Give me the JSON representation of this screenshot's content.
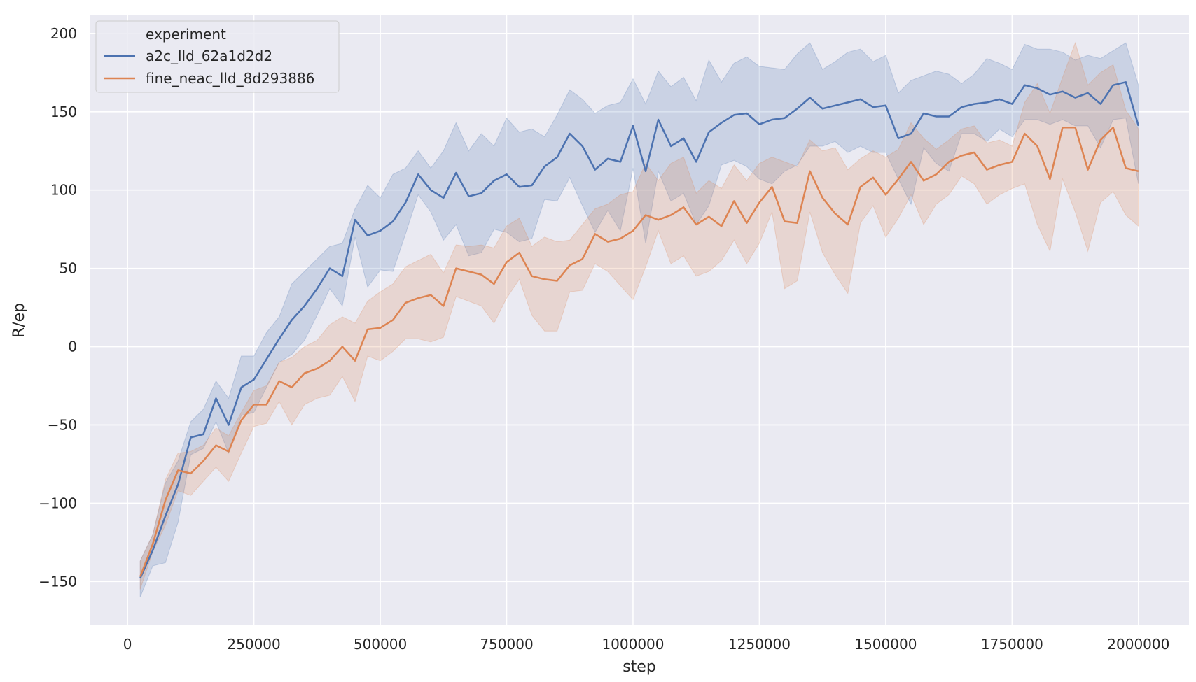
{
  "chart_data": {
    "type": "line",
    "title": "",
    "xlabel": "step",
    "ylabel": "R/ep",
    "xlim": [
      -75000,
      2100000
    ],
    "ylim": [
      -178,
      212
    ],
    "xticks": [
      0,
      250000,
      500000,
      750000,
      1000000,
      1250000,
      1500000,
      1750000,
      2000000
    ],
    "xtick_labels": [
      "0",
      "250000",
      "500000",
      "750000",
      "1000000",
      "1250000",
      "1500000",
      "1750000",
      "2000000"
    ],
    "yticks": [
      -150,
      -100,
      -50,
      0,
      50,
      100,
      150,
      200
    ],
    "ytick_labels": [
      "−150",
      "−100",
      "−50",
      "0",
      "50",
      "100",
      "150",
      "200"
    ],
    "grid": true,
    "legend": {
      "title": "experiment",
      "placement": "top-left"
    },
    "x": [
      25000,
      50000,
      75000,
      100000,
      125000,
      150000,
      175000,
      200000,
      225000,
      250000,
      275000,
      300000,
      325000,
      350000,
      375000,
      400000,
      425000,
      450000,
      475000,
      500000,
      525000,
      550000,
      575000,
      600000,
      625000,
      650000,
      675000,
      700000,
      725000,
      750000,
      775000,
      800000,
      825000,
      850000,
      875000,
      900000,
      925000,
      950000,
      975000,
      1000000,
      1025000,
      1050000,
      1075000,
      1100000,
      1125000,
      1150000,
      1175000,
      1200000,
      1225000,
      1250000,
      1275000,
      1300000,
      1325000,
      1350000,
      1375000,
      1400000,
      1425000,
      1450000,
      1475000,
      1500000,
      1525000,
      1550000,
      1575000,
      1600000,
      1625000,
      1650000,
      1675000,
      1700000,
      1725000,
      1750000,
      1775000,
      1800000,
      1825000,
      1850000,
      1875000,
      1900000,
      1925000,
      1950000,
      1975000,
      2000000
    ],
    "series": [
      {
        "name": "a2c_lld_62a1d2d2",
        "color": "#4c72b0",
        "values": [
          -148,
          -130,
          -108,
          -88,
          -58,
          -56,
          -33,
          -50,
          -26,
          -21,
          -8,
          5,
          17,
          26,
          37,
          50,
          45,
          81,
          71,
          74,
          80,
          92,
          110,
          100,
          95,
          111,
          96,
          98,
          106,
          110,
          102,
          103,
          115,
          121,
          136,
          128,
          113,
          120,
          118,
          141,
          112,
          145,
          128,
          133,
          118,
          137,
          143,
          148,
          149,
          142,
          145,
          146,
          152,
          159,
          152,
          154,
          156,
          158,
          153,
          154,
          133,
          136,
          149,
          147,
          147,
          153,
          155,
          156,
          158,
          155,
          167,
          165,
          161,
          163,
          159,
          162,
          155,
          167,
          169,
          141
        ],
        "upper": [
          -137,
          -120,
          -87,
          -73,
          -48,
          -40,
          -22,
          -33,
          -6,
          -6,
          9,
          19,
          40,
          48,
          56,
          64,
          66,
          88,
          103,
          95,
          110,
          114,
          125,
          114,
          125,
          143,
          125,
          136,
          128,
          146,
          137,
          139,
          134,
          148,
          164,
          158,
          149,
          154,
          156,
          171,
          155,
          176,
          166,
          172,
          157,
          183,
          169,
          181,
          185,
          179,
          178,
          177,
          187,
          194,
          177,
          182,
          188,
          190,
          182,
          186,
          162,
          170,
          173,
          176,
          174,
          168,
          174,
          184,
          181,
          177,
          193,
          190,
          190,
          188,
          183,
          186,
          184,
          189,
          194,
          167
        ],
        "lower": [
          -160,
          -140,
          -138,
          -112,
          -69,
          -65,
          -48,
          -68,
          -44,
          -42,
          -26,
          -10,
          -5,
          4,
          20,
          37,
          26,
          70,
          38,
          49,
          48,
          72,
          97,
          86,
          68,
          78,
          58,
          60,
          75,
          73,
          67,
          69,
          94,
          93,
          108,
          90,
          73,
          87,
          74,
          114,
          66,
          112,
          93,
          98,
          78,
          90,
          116,
          119,
          115,
          107,
          104,
          112,
          116,
          128,
          128,
          131,
          124,
          128,
          124,
          124,
          107,
          91,
          127,
          117,
          112,
          136,
          136,
          131,
          139,
          134,
          145,
          145,
          142,
          145,
          141,
          141,
          127,
          145,
          146,
          104
        ]
      },
      {
        "name": "fine_neac_lld_8d293886",
        "color": "#dd8452",
        "values": [
          -147,
          -126,
          -98,
          -79,
          -81,
          -73,
          -63,
          -67,
          -47,
          -37,
          -37,
          -22,
          -26,
          -17,
          -14,
          -9,
          0,
          -9,
          11,
          12,
          17,
          28,
          31,
          33,
          26,
          50,
          48,
          46,
          40,
          54,
          60,
          45,
          43,
          42,
          52,
          56,
          72,
          67,
          69,
          74,
          84,
          81,
          84,
          89,
          78,
          83,
          77,
          93,
          79,
          92,
          102,
          80,
          79,
          112,
          95,
          85,
          78,
          102,
          108,
          97,
          107,
          118,
          106,
          110,
          118,
          122,
          124,
          113,
          116,
          118,
          136,
          128,
          107,
          140,
          140,
          113,
          132,
          140,
          114,
          112
        ],
        "upper": [
          -137,
          -120,
          -85,
          -68,
          -67,
          -63,
          -52,
          -57,
          -42,
          -28,
          -25,
          -10,
          -7,
          0,
          4,
          14,
          19,
          15,
          29,
          35,
          40,
          51,
          55,
          59,
          47,
          65,
          64,
          65,
          63,
          77,
          82,
          64,
          70,
          67,
          68,
          78,
          88,
          91,
          97,
          99,
          117,
          106,
          117,
          121,
          98,
          106,
          101,
          116,
          106,
          117,
          121,
          118,
          115,
          132,
          125,
          127,
          113,
          120,
          125,
          121,
          126,
          143,
          133,
          126,
          132,
          139,
          141,
          130,
          132,
          128,
          156,
          168,
          149,
          172,
          194,
          167,
          175,
          180,
          151,
          139
        ],
        "lower": [
          -155,
          -131,
          -114,
          -92,
          -95,
          -86,
          -77,
          -86,
          -68,
          -51,
          -49,
          -35,
          -50,
          -37,
          -33,
          -31,
          -19,
          -35,
          -6,
          -9,
          -3,
          5,
          5,
          3,
          6,
          32,
          29,
          26,
          15,
          31,
          43,
          20,
          10,
          10,
          35,
          36,
          53,
          48,
          39,
          30,
          51,
          74,
          53,
          58,
          45,
          48,
          55,
          68,
          53,
          66,
          86,
          37,
          42,
          86,
          60,
          46,
          34,
          79,
          90,
          70,
          82,
          97,
          78,
          91,
          97,
          109,
          104,
          91,
          97,
          101,
          104,
          78,
          61,
          107,
          86,
          61,
          92,
          99,
          84,
          77
        ]
      }
    ]
  }
}
